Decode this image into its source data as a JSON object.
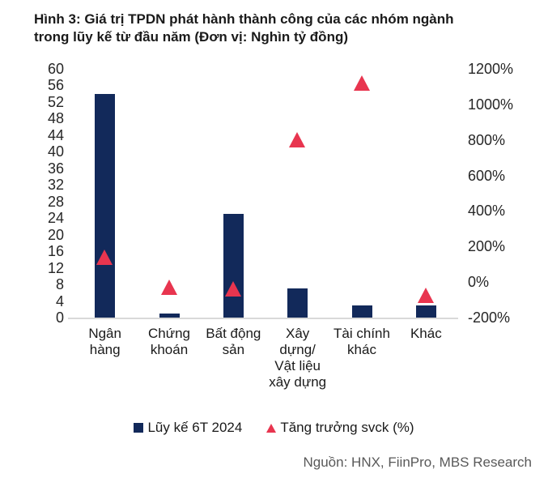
{
  "title": "Hình 3: Giá trị TPDN phát hành thành công của các nhóm ngành\ntrong lũy kế từ đầu năm (Đơn vị: Nghìn tỷ đồng)",
  "source": "Nguồn: HNX, FiinPro, MBS Research",
  "colors": {
    "bar": "#12295A",
    "marker": "#E8354F",
    "axis_line": "#D9D9D9",
    "title_text": "#1A1A1A",
    "tick_text": "#262626",
    "source_text": "#595959"
  },
  "legend": [
    {
      "label": "Lũy kế 6T 2024",
      "marker": "square"
    },
    {
      "label": "Tăng trưởng svck (%)",
      "marker": "triangle"
    }
  ],
  "chart_data": {
    "type": "bar",
    "title": "Giá trị TPDN phát hành thành công của các nhóm ngành trong lũy kế từ đầu năm",
    "unit": "Nghìn tỷ đồng",
    "grid": false,
    "legend_position": "bottom",
    "categories": [
      "Ngân hàng",
      "Chứng khoán",
      "Bất động sản",
      "Xây dựng/ Vật liệu xây dựng",
      "Tài chính khác",
      "Khác"
    ],
    "category_label_lines": [
      [
        "Ngân",
        "hàng"
      ],
      [
        "Chứng",
        "khoán"
      ],
      [
        "Bất động",
        "sản"
      ],
      [
        "Xây",
        "dựng/",
        "Vật liệu",
        "xây dựng"
      ],
      [
        "Tài chính",
        "khác"
      ],
      [
        "Khác"
      ]
    ],
    "series": [
      {
        "name": "Lũy kế 6T 2024",
        "type": "bar",
        "axis": "left",
        "values": [
          54,
          1,
          25,
          7,
          3,
          3
        ]
      },
      {
        "name": "Tăng trưởng svck (%)",
        "type": "scatter",
        "marker": "triangle",
        "axis": "right",
        "values": [
          140,
          -30,
          -40,
          800,
          1120,
          -75
        ]
      }
    ],
    "left_axis": {
      "min": 0,
      "max": 60,
      "step": 4,
      "tick_labels": [
        "60",
        "56",
        "52",
        "48",
        "44",
        "40",
        "36",
        "32",
        "28",
        "24",
        "20",
        "16",
        "12",
        "8",
        "4",
        "0"
      ]
    },
    "right_axis": {
      "min": -200,
      "max": 1200,
      "step": 200,
      "tick_labels": [
        "1200%",
        "1000%",
        "800%",
        "600%",
        "400%",
        "200%",
        "0%",
        "-200%"
      ]
    }
  }
}
